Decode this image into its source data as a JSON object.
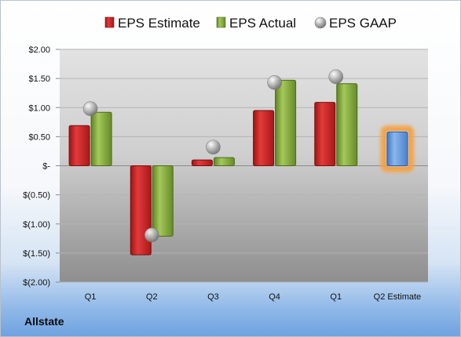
{
  "company_label": "Allstate",
  "chart_data": {
    "type": "bar",
    "categories": [
      "Q1",
      "Q2",
      "Q3",
      "Q4",
      "Q1",
      "Q2 Estimate"
    ],
    "series": [
      {
        "name": "EPS Estimate",
        "color": "#d42424",
        "values": [
          0.69,
          -1.53,
          0.1,
          0.95,
          1.09,
          null
        ]
      },
      {
        "name": "EPS Actual",
        "color": "#8cb040",
        "values": [
          0.92,
          -1.21,
          0.14,
          1.47,
          1.41,
          null
        ]
      },
      {
        "name": "EPS GAAP",
        "color": "#b0b0b0",
        "marker": "sphere",
        "values": [
          0.98,
          -1.19,
          0.32,
          1.43,
          1.53,
          null
        ]
      },
      {
        "name": "",
        "color": "#6c9edc",
        "highlight": "#f5a040",
        "values": [
          null,
          null,
          null,
          null,
          null,
          0.58
        ]
      }
    ],
    "ylim": [
      -2.0,
      2.0
    ],
    "yticks": [
      2.0,
      1.5,
      1.0,
      0.5,
      0.0,
      -0.5,
      -1.0,
      -1.5,
      -2.0
    ],
    "ytick_labels": [
      "$2.00",
      "$1.50",
      "$1.00",
      "$0.50",
      "$-",
      "$(0.50)",
      "$(1.00)",
      "$(1.50)",
      "$(2.00)"
    ],
    "legend_position": "top",
    "grid": true
  }
}
